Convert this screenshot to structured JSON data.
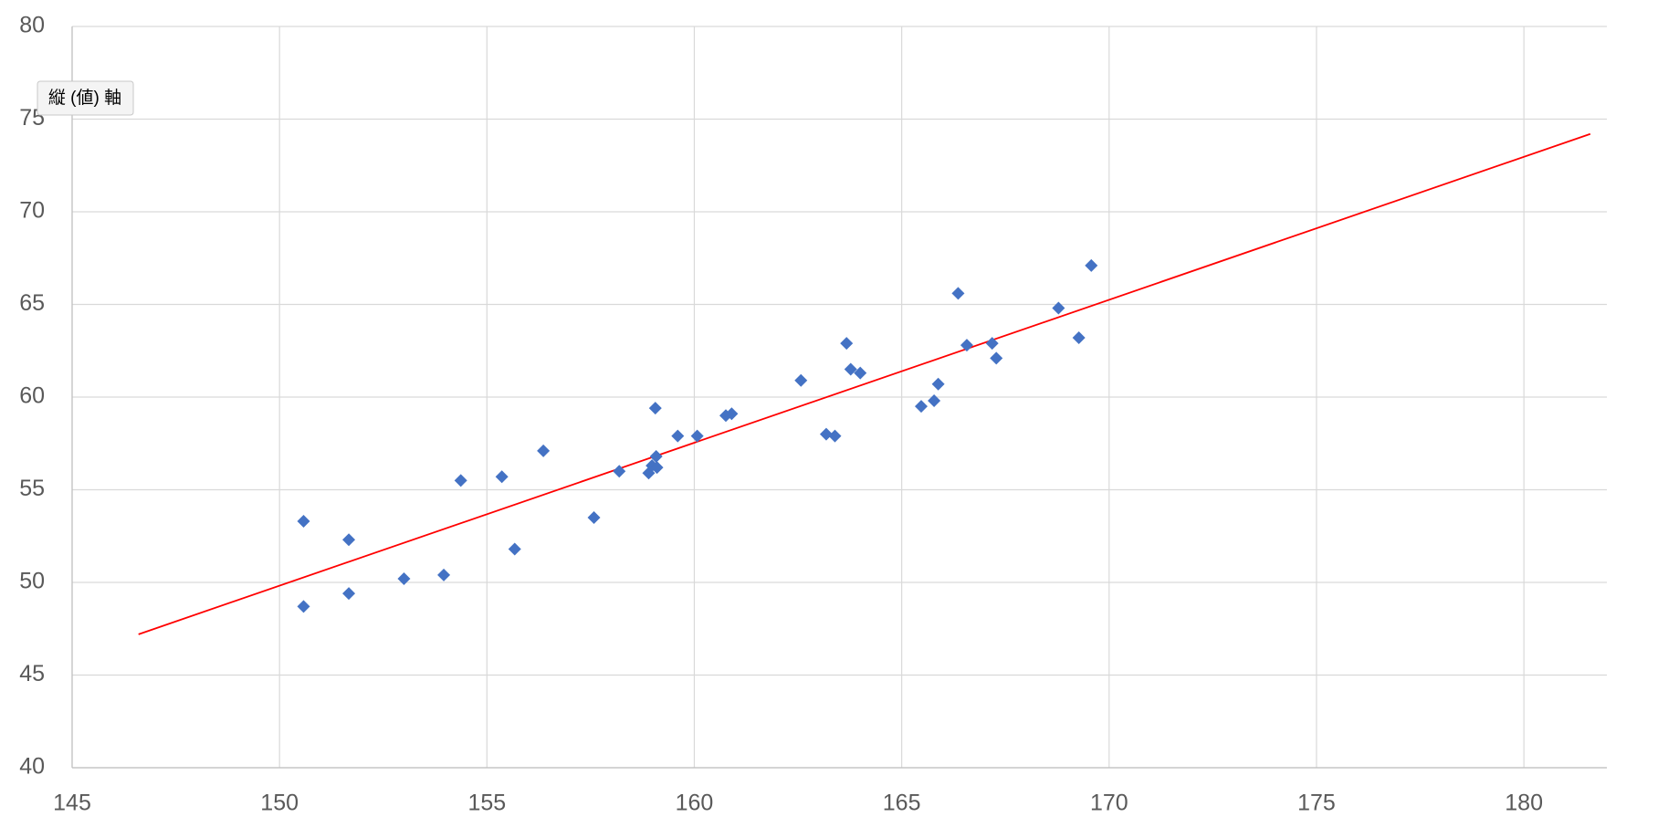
{
  "chart_data": {
    "type": "scatter",
    "tooltip": "縦 (値) 軸",
    "xlim": [
      145,
      182
    ],
    "xticks": [
      145,
      150,
      155,
      160,
      165,
      170,
      175,
      180
    ],
    "ylim": [
      40,
      80
    ],
    "yticks": [
      40,
      45,
      50,
      55,
      60,
      65,
      70,
      75,
      80
    ],
    "grid": true,
    "points": {
      "color": "#4472c4",
      "x": [
        150.58,
        150.58,
        151.67,
        151.67,
        153.0,
        153.96,
        154.37,
        155.36,
        155.67,
        156.36,
        157.58,
        158.19,
        158.9,
        158.98,
        159.08,
        159.1,
        159.06,
        159.6,
        160.07,
        160.76,
        160.9,
        162.57,
        163.18,
        163.39,
        163.67,
        163.77,
        164.0,
        165.47,
        165.78,
        165.88,
        166.36,
        166.57,
        167.18,
        167.28,
        168.78,
        169.27,
        169.57
      ],
      "y": [
        53.3,
        48.7,
        52.3,
        49.4,
        50.2,
        50.4,
        55.5,
        55.7,
        51.8,
        57.1,
        53.5,
        56.0,
        55.9,
        56.3,
        56.8,
        56.2,
        59.4,
        57.9,
        57.9,
        59.0,
        59.1,
        60.9,
        58.0,
        57.9,
        62.9,
        61.5,
        61.3,
        59.5,
        59.8,
        60.7,
        65.6,
        62.8,
        62.9,
        62.1,
        64.8,
        63.2,
        67.1
      ]
    },
    "trendline": {
      "color": "#ff0000",
      "x": [
        146.6,
        181.6
      ],
      "y": [
        47.2,
        74.2
      ]
    }
  }
}
